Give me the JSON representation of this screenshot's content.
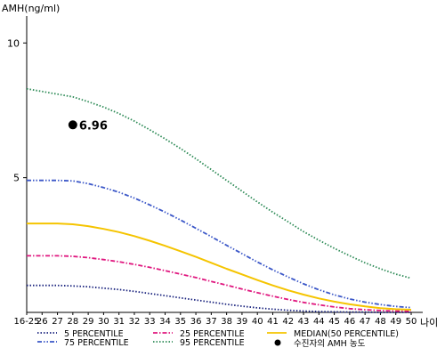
{
  "chart_data": {
    "type": "line",
    "ylabel": "AMH(ng/ml)",
    "xlabel": "나이",
    "ylim": [
      0,
      11
    ],
    "y_ticks": [
      5,
      10
    ],
    "x": [
      "16-25",
      "26",
      "27",
      "28",
      "29",
      "30",
      "31",
      "32",
      "33",
      "34",
      "35",
      "36",
      "37",
      "38",
      "39",
      "40",
      "41",
      "42",
      "43",
      "44",
      "45",
      "46",
      "47",
      "48",
      "49",
      "50"
    ],
    "grid": false,
    "legend_position": "bottom",
    "series": [
      {
        "name": "5 PERCENTILE",
        "color": "#1a237e",
        "style": "dotted",
        "values": [
          1.0,
          1.0,
          1.0,
          0.98,
          0.95,
          0.9,
          0.85,
          0.78,
          0.7,
          0.62,
          0.54,
          0.46,
          0.38,
          0.3,
          0.23,
          0.17,
          0.12,
          0.08,
          0.05,
          0.03,
          0.02,
          0.01,
          0.01,
          0.0,
          0.0,
          0.0
        ]
      },
      {
        "name": "25 PERCENTILE",
        "color": "#e0177f",
        "style": "dashdot",
        "values": [
          2.1,
          2.1,
          2.1,
          2.08,
          2.03,
          1.96,
          1.88,
          1.78,
          1.67,
          1.55,
          1.42,
          1.29,
          1.15,
          1.01,
          0.87,
          0.73,
          0.6,
          0.48,
          0.37,
          0.28,
          0.2,
          0.14,
          0.1,
          0.07,
          0.05,
          0.04
        ]
      },
      {
        "name": "MEDIAN(50 PERCENTILE)",
        "color": "#f5c400",
        "style": "solid",
        "values": [
          3.3,
          3.3,
          3.3,
          3.27,
          3.2,
          3.1,
          2.98,
          2.83,
          2.66,
          2.47,
          2.27,
          2.06,
          1.84,
          1.62,
          1.41,
          1.2,
          1.0,
          0.82,
          0.66,
          0.52,
          0.4,
          0.3,
          0.22,
          0.16,
          0.12,
          0.1
        ]
      },
      {
        "name": "75 PERCENTILE",
        "color": "#3b57c8",
        "style": "dashdotdot",
        "values": [
          4.9,
          4.9,
          4.9,
          4.88,
          4.78,
          4.63,
          4.46,
          4.24,
          3.99,
          3.72,
          3.43,
          3.12,
          2.81,
          2.49,
          2.18,
          1.87,
          1.58,
          1.31,
          1.06,
          0.84,
          0.65,
          0.5,
          0.38,
          0.29,
          0.22,
          0.18
        ]
      },
      {
        "name": "95 PERCENTILE",
        "color": "#2e8b57",
        "style": "dotted",
        "values": [
          8.3,
          8.2,
          8.1,
          8.0,
          7.82,
          7.62,
          7.38,
          7.1,
          6.78,
          6.44,
          6.08,
          5.7,
          5.3,
          4.9,
          4.5,
          4.1,
          3.72,
          3.36,
          3.0,
          2.68,
          2.38,
          2.1,
          1.84,
          1.62,
          1.42,
          1.27
        ]
      }
    ],
    "marker": {
      "name": "수진자의 AMH 농도",
      "x": "28",
      "y": 6.96,
      "label": "6.96",
      "color": "#000000"
    }
  }
}
